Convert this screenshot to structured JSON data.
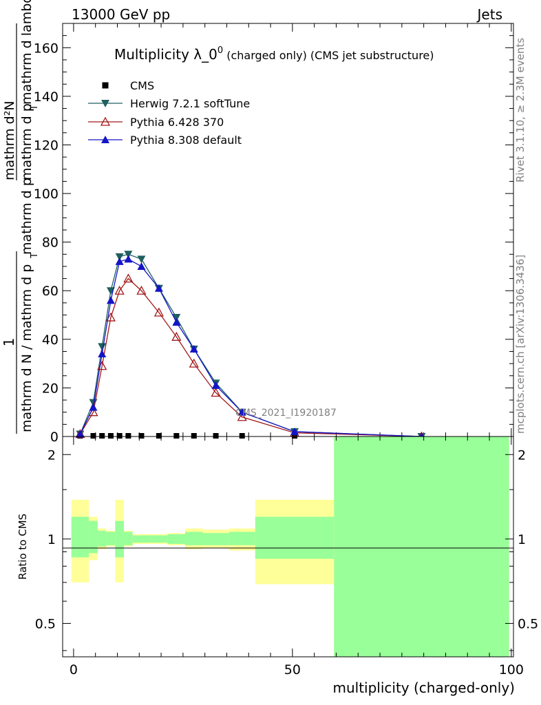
{
  "header": {
    "left": "13000 GeV pp",
    "right": "Jets"
  },
  "side_labels": {
    "rivet": "Rivet 3.1.10, ≥ 2.3M events",
    "mcplots": "mcplots.cern.ch [arXiv:1306.3436]"
  },
  "chart_data": [
    {
      "type": "line",
      "title_main": "Multiplicity λ_0",
      "title_sup": "0",
      "title_rest": " (charged only) (CMS jet substructure)",
      "ylabel_num": "1",
      "ylabel_den": "mathrm d N / mathrm d p_T mathrm d p_T mathrm d lambda",
      "ylabel_num_right": "mathrm d^2 N",
      "ylabel_num_right_text": "mathrm d²N",
      "ylabel_denom_text": "mathrm d N / mathrm d p",
      "ylim": [
        0,
        170
      ],
      "yticks": [
        0,
        20,
        40,
        60,
        80,
        100,
        120,
        140,
        160
      ],
      "xlim": [
        -2.5,
        100.5
      ],
      "watermark": "CMS_2021_I1920187",
      "legend_position": "top-left",
      "series": [
        {
          "name": "CMS",
          "color": "#000000",
          "marker": "square",
          "x": [
            1.5,
            4.5,
            6.5,
            8.5,
            10.5,
            12.5,
            15.5,
            19.5,
            23.5,
            27.5,
            32.5,
            38.5,
            50.5,
            79.5
          ],
          "y": [
            0,
            0,
            0,
            0,
            0,
            0,
            0,
            0,
            0,
            0,
            0,
            0,
            0,
            0
          ]
        },
        {
          "name": "Herwig 7.2.1 softTune",
          "color": "#1f5f5f",
          "marker": "triangle-down",
          "x": [
            1.5,
            4.5,
            6.5,
            8.5,
            10.5,
            12.5,
            15.5,
            19.5,
            23.5,
            27.5,
            32.5,
            38.5,
            50.5,
            79.5
          ],
          "y": [
            1,
            14,
            37,
            60,
            74,
            75,
            73,
            61,
            49,
            36,
            22,
            10,
            2,
            0
          ]
        },
        {
          "name": "Pythia 6.428 370",
          "color": "#a01818",
          "marker": "triangle-up-open",
          "x": [
            1.5,
            4.5,
            6.5,
            8.5,
            10.5,
            12.5,
            15.5,
            19.5,
            23.5,
            27.5,
            32.5,
            38.5,
            50.5,
            79.5
          ],
          "y": [
            1,
            10,
            29,
            49,
            60,
            65,
            60,
            51,
            41,
            30,
            18,
            8,
            1.5,
            0
          ]
        },
        {
          "name": "Pythia 8.308 default",
          "color": "#1414c8",
          "marker": "triangle-up",
          "x": [
            1.5,
            4.5,
            6.5,
            8.5,
            10.5,
            12.5,
            15.5,
            19.5,
            23.5,
            27.5,
            32.5,
            38.5,
            50.5,
            79.5
          ],
          "y": [
            1,
            12,
            34,
            56,
            72,
            73,
            70,
            61,
            47,
            36,
            21,
            10,
            2,
            0
          ]
        }
      ]
    },
    {
      "type": "area",
      "ylabel": "Ratio to CMS",
      "xlabel": "multiplicity (charged-only)",
      "ylim": [
        0.38,
        2.32
      ],
      "yticks": [
        0.5,
        1,
        2
      ],
      "ytick_labels": [
        "0.5",
        "1",
        "2"
      ],
      "xlim": [
        -2.5,
        100.5
      ],
      "xticks": [
        0,
        50,
        100
      ],
      "xtick_labels": [
        "0",
        "50",
        "100"
      ],
      "band_colors": {
        "outer": "#ffff99",
        "inner": "#99ff99"
      },
      "bins": [
        {
          "xlo": -0.5,
          "xhi": 3.5,
          "in_lo": 0.86,
          "in_hi": 1.2,
          "out_lo": 0.7,
          "out_hi": 1.38
        },
        {
          "xlo": 3.5,
          "xhi": 5.5,
          "in_lo": 0.89,
          "in_hi": 1.16,
          "out_lo": 0.84,
          "out_hi": 1.2
        },
        {
          "xlo": 5.5,
          "xhi": 7.5,
          "in_lo": 0.94,
          "in_hi": 1.07,
          "out_lo": 0.92,
          "out_hi": 1.09
        },
        {
          "xlo": 7.5,
          "xhi": 9.5,
          "in_lo": 0.95,
          "in_hi": 1.06,
          "out_lo": 0.94,
          "out_hi": 1.07
        },
        {
          "xlo": 9.5,
          "xhi": 11.5,
          "in_lo": 0.86,
          "in_hi": 1.16,
          "out_lo": 0.7,
          "out_hi": 1.38
        },
        {
          "xlo": 11.5,
          "xhi": 13.5,
          "in_lo": 0.95,
          "in_hi": 1.06,
          "out_lo": 0.94,
          "out_hi": 1.07
        },
        {
          "xlo": 13.5,
          "xhi": 17.5,
          "in_lo": 0.97,
          "in_hi": 1.03,
          "out_lo": 0.96,
          "out_hi": 1.04
        },
        {
          "xlo": 17.5,
          "xhi": 21.5,
          "in_lo": 0.97,
          "in_hi": 1.03,
          "out_lo": 0.96,
          "out_hi": 1.04
        },
        {
          "xlo": 21.5,
          "xhi": 25.5,
          "in_lo": 0.96,
          "in_hi": 1.04,
          "out_lo": 0.95,
          "out_hi": 1.05
        },
        {
          "xlo": 25.5,
          "xhi": 29.5,
          "in_lo": 0.95,
          "in_hi": 1.06,
          "out_lo": 0.92,
          "out_hi": 1.09
        },
        {
          "xlo": 29.5,
          "xhi": 35.5,
          "in_lo": 0.95,
          "in_hi": 1.05,
          "out_lo": 0.93,
          "out_hi": 1.08
        },
        {
          "xlo": 35.5,
          "xhi": 41.5,
          "in_lo": 0.95,
          "in_hi": 1.06,
          "out_lo": 0.91,
          "out_hi": 1.09
        },
        {
          "xlo": 41.5,
          "xhi": 59.5,
          "in_lo": 0.85,
          "in_hi": 1.2,
          "out_lo": 0.69,
          "out_hi": 1.38
        },
        {
          "xlo": 59.5,
          "xhi": 99.5,
          "in_lo": 0.38,
          "in_hi": 2.32,
          "out_lo": 0.38,
          "out_hi": 2.32
        }
      ]
    }
  ]
}
